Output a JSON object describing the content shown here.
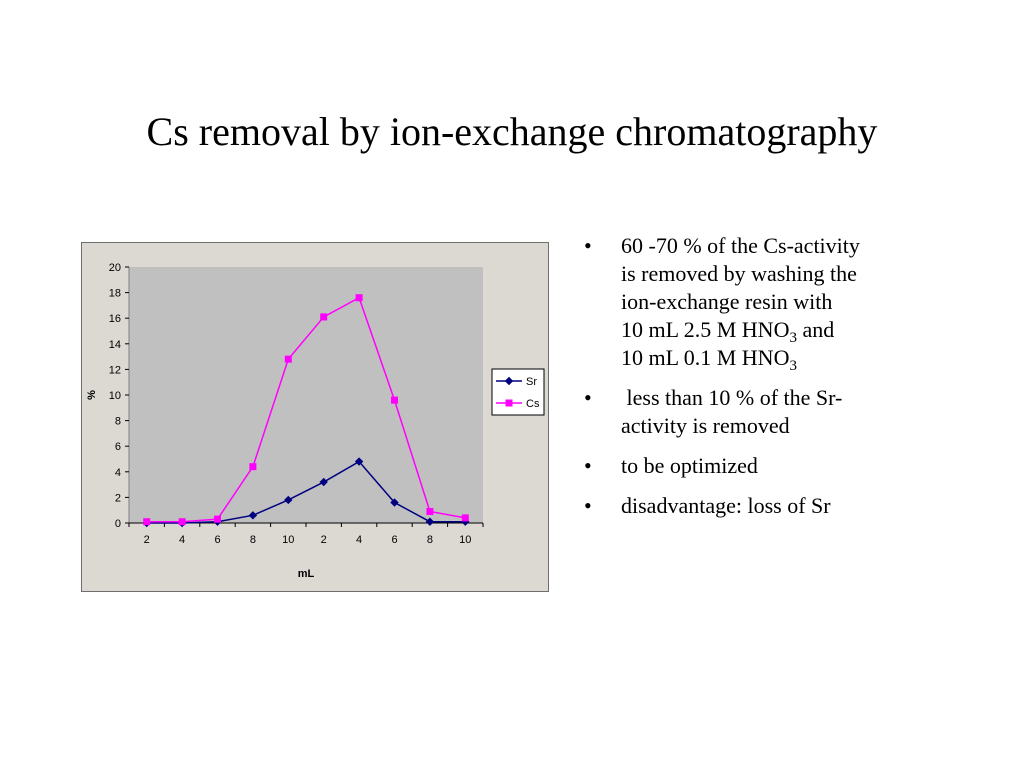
{
  "slide": {
    "title": "Cs removal by ion-exchange chromatography"
  },
  "bullets": [
    {
      "dot": "•",
      "lines": [
        "60 -70 % of the Cs-activity",
        "is removed by washing the",
        "ion-exchange resin with"
      ],
      "formula_lines": [
        {
          "text": "10 mL 2.5 M HNO",
          "sub": "3",
          "after": " and"
        },
        {
          "text": "10 mL 0.1 M HNO",
          "sub": "3",
          "after": ""
        }
      ]
    },
    {
      "dot": "•",
      "lines": [
        " less than 10 % of the Sr-",
        "activity is removed"
      ]
    },
    {
      "dot": "•",
      "lines": [
        "to be optimized"
      ]
    },
    {
      "dot": "•",
      "lines": [
        "disadvantage: loss of Sr"
      ]
    }
  ],
  "chart_data": {
    "type": "line",
    "title": "",
    "xlabel": "mL",
    "ylabel": "%",
    "categories": [
      "2",
      "4",
      "6",
      "8",
      "10",
      "2",
      "4",
      "6",
      "8",
      "10"
    ],
    "ylim": [
      0,
      20
    ],
    "yticks": [
      0,
      2,
      4,
      6,
      8,
      10,
      12,
      14,
      16,
      18,
      20
    ],
    "grid": false,
    "legend_position": "right",
    "plot_background": "#c0c0c0",
    "series": [
      {
        "name": "Sr",
        "color": "#000080",
        "marker": "diamond",
        "values": [
          0.0,
          0.0,
          0.1,
          0.6,
          1.8,
          3.2,
          4.8,
          1.6,
          0.1,
          0.1
        ]
      },
      {
        "name": "Cs",
        "color": "#ff00ff",
        "marker": "square",
        "values": [
          0.1,
          0.1,
          0.3,
          4.4,
          12.8,
          16.1,
          17.6,
          9.6,
          0.9,
          0.4
        ]
      }
    ]
  }
}
